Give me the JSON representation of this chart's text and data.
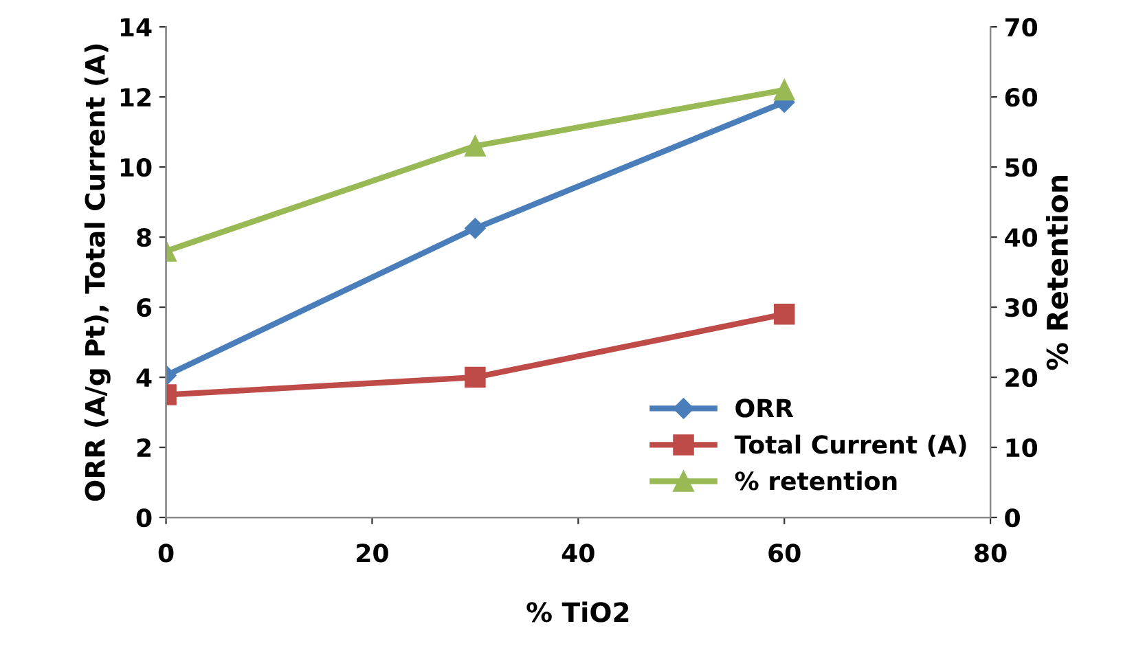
{
  "chart_data": {
    "type": "line",
    "xlabel": "% TiO2",
    "ylabel": "ORR (A/g Pt), Total Current (A)",
    "y2label": "% Retention",
    "x": [
      0,
      30,
      60
    ],
    "series": [
      {
        "name": "ORR",
        "color": "#4a7ebb",
        "marker": "diamond",
        "values": [
          4.05,
          8.25,
          11.85
        ]
      },
      {
        "name": "Total Current (A)",
        "color": "#be4b48",
        "marker": "square",
        "values": [
          3.5,
          4.0,
          5.8
        ]
      },
      {
        "name": "% retention",
        "color": "#98b954",
        "marker": "triangle",
        "axis": "y2",
        "values": [
          38,
          53,
          61
        ]
      }
    ],
    "xlim": [
      0,
      80
    ],
    "xticks": [
      0,
      20,
      40,
      60,
      80
    ],
    "ylim": [
      0,
      14
    ],
    "yticks": [
      0,
      2,
      4,
      6,
      8,
      10,
      12,
      14
    ],
    "y2lim": [
      0,
      70
    ],
    "y2ticks": [
      0,
      10,
      20,
      30,
      40,
      50,
      60,
      70
    ],
    "grid": false,
    "legend": "bottom right"
  }
}
